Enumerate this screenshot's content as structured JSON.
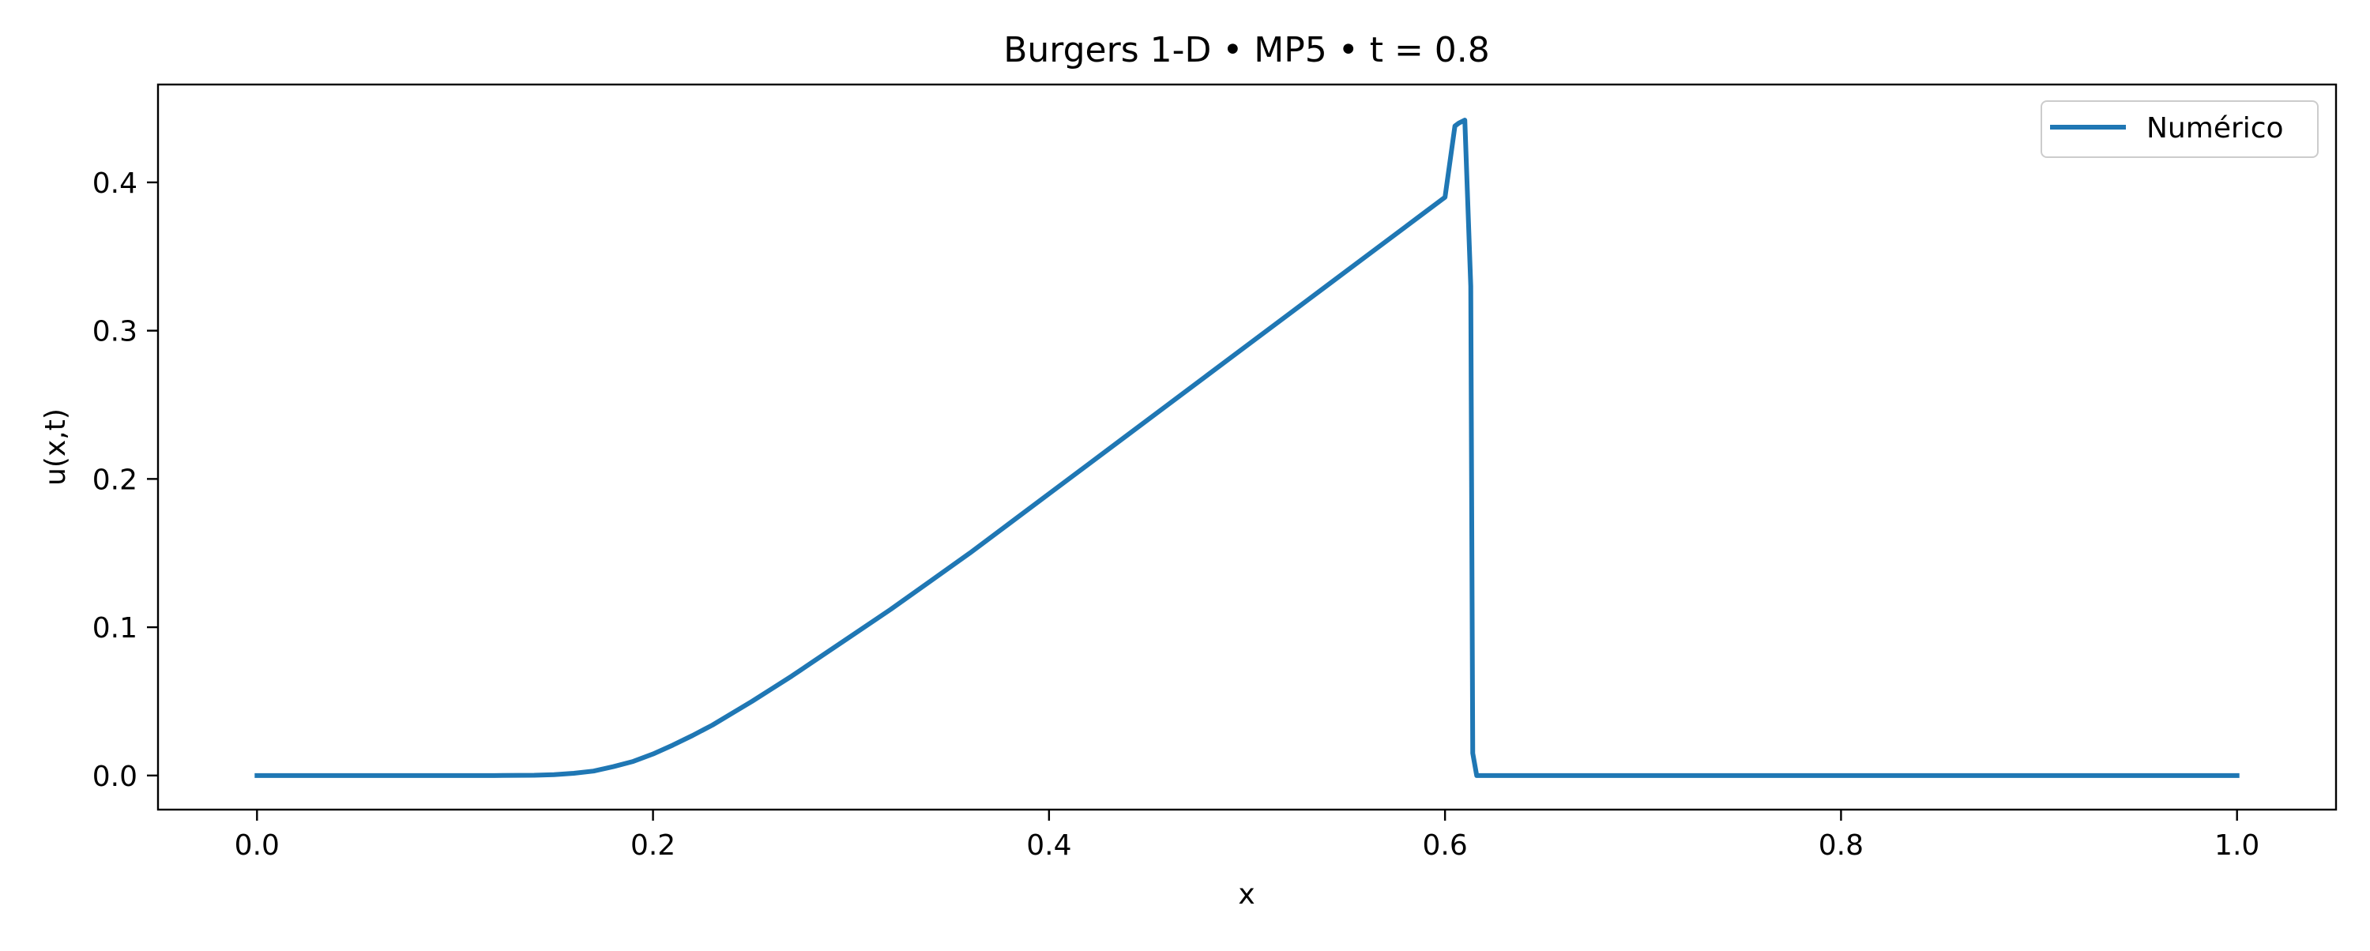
{
  "chart_data": {
    "type": "line",
    "title": "Burgers 1-D • MP5 • t = 0.8",
    "xlabel": "x",
    "ylabel": "u(x,t)",
    "xlim": [
      -0.05,
      1.05
    ],
    "ylim": [
      -0.023,
      0.466
    ],
    "x_ticks": [
      0.0,
      0.2,
      0.4,
      0.6,
      0.8,
      1.0
    ],
    "x_tick_labels": [
      "0.0",
      "0.2",
      "0.4",
      "0.6",
      "0.8",
      "1.0"
    ],
    "y_ticks": [
      0.0,
      0.1,
      0.2,
      0.3,
      0.4
    ],
    "y_tick_labels": [
      "0.0",
      "0.1",
      "0.2",
      "0.3",
      "0.4"
    ],
    "grid": false,
    "legend": {
      "position": "top-right"
    },
    "series": [
      {
        "name": "Numérico",
        "color": "#1f77b4",
        "x": [
          0.0,
          0.05,
          0.1,
          0.12,
          0.14,
          0.15,
          0.16,
          0.17,
          0.18,
          0.19,
          0.2,
          0.21,
          0.22,
          0.23,
          0.24,
          0.25,
          0.26,
          0.27,
          0.28,
          0.3,
          0.32,
          0.34,
          0.36,
          0.38,
          0.4,
          0.42,
          0.44,
          0.46,
          0.48,
          0.5,
          0.52,
          0.54,
          0.56,
          0.58,
          0.59,
          0.6,
          0.605,
          0.607,
          0.61,
          0.613,
          0.614,
          0.616,
          1.0
        ],
        "y": [
          0.0,
          0.0,
          0.0,
          0.0,
          0.0002,
          0.0006,
          0.0015,
          0.003,
          0.006,
          0.0095,
          0.0145,
          0.0205,
          0.027,
          0.034,
          0.042,
          0.05,
          0.0585,
          0.067,
          0.076,
          0.094,
          0.112,
          0.131,
          0.15,
          0.17,
          0.19,
          0.21,
          0.23,
          0.25,
          0.27,
          0.29,
          0.31,
          0.33,
          0.35,
          0.37,
          0.38,
          0.39,
          0.438,
          0.44,
          0.442,
          0.33,
          0.015,
          0.0,
          0.0
        ]
      }
    ]
  }
}
